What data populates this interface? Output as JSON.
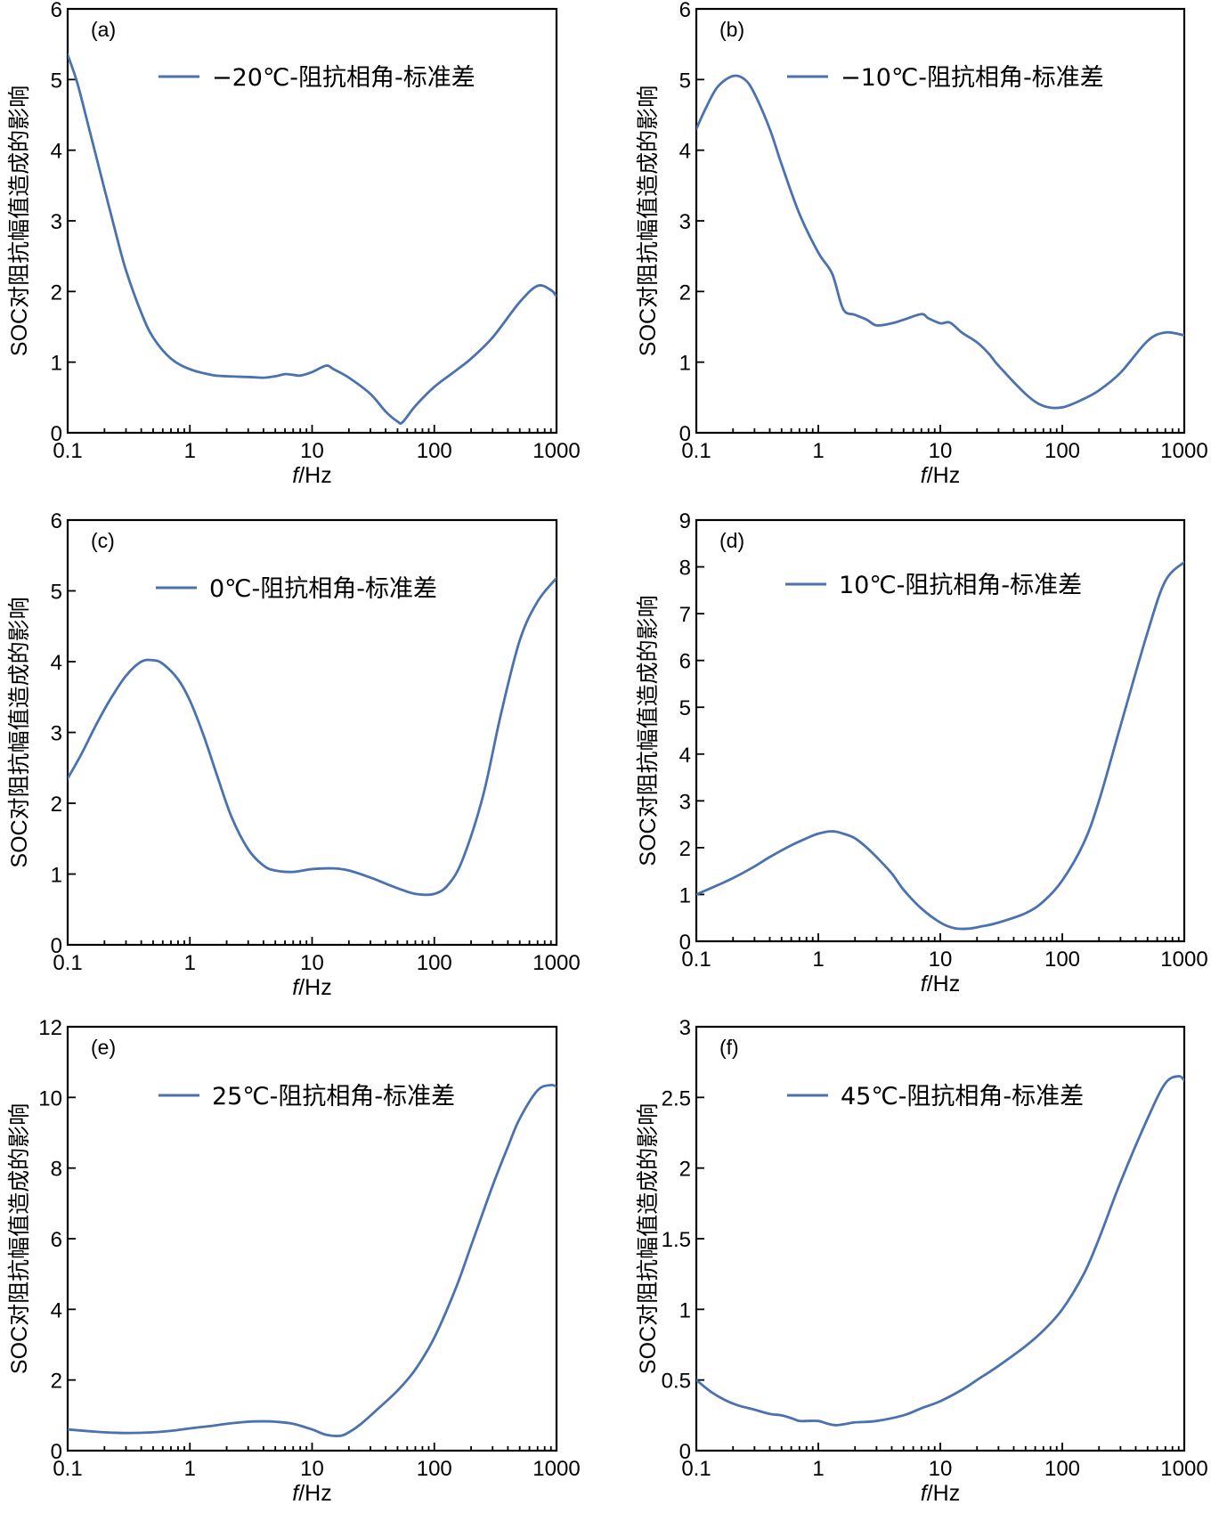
{
  "figure": {
    "line_color": "#4a72ae",
    "ylabel": "SOC对阻抗幅值造成的影响",
    "xlabel_italic": "f",
    "xlabel_unit": "/Hz"
  },
  "chart_data": [
    {
      "id": "a",
      "type": "line",
      "panel_label": "(a)",
      "title": "",
      "xscale": "log",
      "xlim": [
        0.1,
        1000
      ],
      "ylim": [
        0,
        6
      ],
      "xticks": [
        0.1,
        1,
        10,
        100,
        1000
      ],
      "xtick_labels": [
        "0.1",
        "1",
        "10",
        "100",
        "1000"
      ],
      "yticks": [
        0,
        1,
        2,
        3,
        4,
        5,
        6
      ],
      "ytick_labels": [
        "0",
        "1",
        "2",
        "3",
        "4",
        "5",
        "6"
      ],
      "xlabel": "f/Hz",
      "ylabel": "SOC对阻抗幅值造成的影响",
      "legend_position": "top-center",
      "series": [
        {
          "name": "−20℃-阻抗相角-标准差",
          "x": [
            0.1,
            0.12,
            0.15,
            0.2,
            0.25,
            0.3,
            0.4,
            0.5,
            0.7,
            1.0,
            1.5,
            2,
            3,
            4,
            5,
            6,
            7,
            8,
            10,
            13,
            15,
            20,
            30,
            40,
            50,
            55,
            70,
            100,
            150,
            200,
            300,
            500,
            700,
            900,
            1000
          ],
          "y": [
            5.35,
            4.95,
            4.3,
            3.45,
            2.8,
            2.3,
            1.7,
            1.35,
            1.05,
            0.9,
            0.82,
            0.8,
            0.79,
            0.78,
            0.8,
            0.83,
            0.82,
            0.81,
            0.86,
            0.95,
            0.9,
            0.78,
            0.55,
            0.3,
            0.16,
            0.15,
            0.38,
            0.65,
            0.88,
            1.05,
            1.35,
            1.85,
            2.08,
            2.02,
            1.93
          ]
        }
      ]
    },
    {
      "id": "b",
      "type": "line",
      "panel_label": "(b)",
      "title": "",
      "xscale": "log",
      "xlim": [
        0.1,
        1000
      ],
      "ylim": [
        0,
        6
      ],
      "xticks": [
        0.1,
        1,
        10,
        100,
        1000
      ],
      "xtick_labels": [
        "0.1",
        "1",
        "10",
        "100",
        "1000"
      ],
      "yticks": [
        0,
        1,
        2,
        3,
        4,
        5,
        6
      ],
      "ytick_labels": [
        "0",
        "1",
        "2",
        "3",
        "4",
        "5",
        "6"
      ],
      "xlabel": "f/Hz",
      "ylabel": "SOC对阻抗幅值造成的影响",
      "legend_position": "top-center",
      "series": [
        {
          "name": "−10℃-阻抗相角-标准差",
          "x": [
            0.1,
            0.12,
            0.15,
            0.2,
            0.25,
            0.3,
            0.4,
            0.5,
            0.7,
            1.0,
            1.3,
            1.6,
            2.0,
            2.5,
            3,
            4,
            5,
            7,
            8,
            10,
            12,
            15,
            20,
            25,
            30,
            50,
            70,
            100,
            150,
            200,
            300,
            500,
            700,
            1000
          ],
          "y": [
            4.3,
            4.6,
            4.9,
            5.05,
            5.0,
            4.8,
            4.3,
            3.8,
            3.1,
            2.55,
            2.25,
            1.75,
            1.67,
            1.6,
            1.52,
            1.55,
            1.6,
            1.68,
            1.62,
            1.55,
            1.56,
            1.42,
            1.28,
            1.12,
            0.95,
            0.55,
            0.38,
            0.36,
            0.48,
            0.6,
            0.85,
            1.3,
            1.42,
            1.38
          ]
        }
      ]
    },
    {
      "id": "c",
      "type": "line",
      "panel_label": "(c)",
      "title": "",
      "xscale": "log",
      "xlim": [
        0.1,
        1000
      ],
      "ylim": [
        0,
        6
      ],
      "xticks": [
        0.1,
        1,
        10,
        100,
        1000
      ],
      "xtick_labels": [
        "0.1",
        "1",
        "10",
        "100",
        "1000"
      ],
      "yticks": [
        0,
        1,
        2,
        3,
        4,
        5,
        6
      ],
      "ytick_labels": [
        "0",
        "1",
        "2",
        "3",
        "4",
        "5",
        "6"
      ],
      "xlabel": "f/Hz",
      "ylabel": "SOC对阻抗幅值造成的影响",
      "legend_position": "top-center",
      "series": [
        {
          "name": "0℃-阻抗相角-标准差",
          "x": [
            0.1,
            0.13,
            0.17,
            0.22,
            0.3,
            0.4,
            0.5,
            0.6,
            0.8,
            1.0,
            1.3,
            1.7,
            2.2,
            3,
            4,
            5,
            7,
            10,
            15,
            20,
            30,
            50,
            70,
            100,
            130,
            170,
            250,
            350,
            500,
            700,
            1000
          ],
          "y": [
            2.35,
            2.7,
            3.1,
            3.45,
            3.8,
            4.0,
            4.02,
            3.97,
            3.75,
            3.45,
            2.95,
            2.35,
            1.8,
            1.35,
            1.12,
            1.05,
            1.03,
            1.07,
            1.08,
            1.05,
            0.95,
            0.8,
            0.72,
            0.72,
            0.85,
            1.2,
            2.1,
            3.25,
            4.3,
            4.85,
            5.18
          ]
        }
      ]
    },
    {
      "id": "d",
      "type": "line",
      "panel_label": "(d)",
      "title": "",
      "xscale": "log",
      "xlim": [
        0.1,
        1000
      ],
      "ylim": [
        0,
        9
      ],
      "xticks": [
        0.1,
        1,
        10,
        100,
        1000
      ],
      "xtick_labels": [
        "0.1",
        "1",
        "10",
        "100",
        "1000"
      ],
      "yticks": [
        0,
        1,
        2,
        3,
        4,
        5,
        6,
        7,
        8,
        9
      ],
      "ytick_labels": [
        "0",
        "1",
        "2",
        "3",
        "4",
        "5",
        "6",
        "7",
        "8",
        "9"
      ],
      "xlabel": "f/Hz",
      "ylabel": "SOC对阻抗幅值造成的影响",
      "legend_position": "top-center",
      "series": [
        {
          "name": "10℃-阻抗相角-标准差",
          "x": [
            0.1,
            0.15,
            0.2,
            0.3,
            0.4,
            0.6,
            0.8,
            1.0,
            1.3,
            1.6,
            2.0,
            2.5,
            3,
            4,
            5,
            7,
            10,
            13,
            17,
            22,
            30,
            50,
            70,
            100,
            150,
            200,
            300,
            500,
            700,
            1000
          ],
          "y": [
            1.0,
            1.2,
            1.35,
            1.6,
            1.8,
            2.05,
            2.2,
            2.3,
            2.35,
            2.3,
            2.2,
            2.0,
            1.8,
            1.45,
            1.1,
            0.7,
            0.4,
            0.28,
            0.27,
            0.32,
            0.4,
            0.6,
            0.85,
            1.3,
            2.1,
            3.0,
            4.6,
            6.6,
            7.7,
            8.1
          ]
        }
      ]
    },
    {
      "id": "e",
      "type": "line",
      "panel_label": "(e)",
      "title": "",
      "xscale": "log",
      "xlim": [
        0.1,
        1000
      ],
      "ylim": [
        0,
        12
      ],
      "xticks": [
        0.1,
        1,
        10,
        100,
        1000
      ],
      "xtick_labels": [
        "0.1",
        "1",
        "10",
        "100",
        "1000"
      ],
      "yticks": [
        0,
        2,
        4,
        6,
        8,
        10,
        12
      ],
      "ytick_labels": [
        "0",
        "2",
        "4",
        "6",
        "8",
        "10",
        "12"
      ],
      "xlabel": "f/Hz",
      "ylabel": "SOC对阻抗幅值造成的影响",
      "legend_position": "top-center",
      "series": [
        {
          "name": "25℃-阻抗相角-标准差",
          "x": [
            0.1,
            0.15,
            0.2,
            0.3,
            0.5,
            0.7,
            1.0,
            1.5,
            2,
            3,
            4,
            5,
            7,
            10,
            13,
            17,
            20,
            25,
            35,
            50,
            70,
            100,
            150,
            200,
            300,
            400,
            500,
            700,
            900,
            1000
          ],
          "y": [
            0.6,
            0.55,
            0.52,
            0.5,
            0.52,
            0.56,
            0.63,
            0.7,
            0.76,
            0.82,
            0.83,
            0.82,
            0.76,
            0.6,
            0.45,
            0.42,
            0.52,
            0.75,
            1.2,
            1.7,
            2.3,
            3.2,
            4.6,
            5.8,
            7.5,
            8.6,
            9.4,
            10.2,
            10.35,
            10.3
          ]
        }
      ]
    },
    {
      "id": "f",
      "type": "line",
      "panel_label": "(f)",
      "title": "",
      "xscale": "log",
      "xlim": [
        0.1,
        1000
      ],
      "ylim": [
        0,
        3
      ],
      "xticks": [
        0.1,
        1,
        10,
        100,
        1000
      ],
      "xtick_labels": [
        "0.1",
        "1",
        "10",
        "100",
        "1000"
      ],
      "yticks": [
        0,
        0.5,
        1,
        1.5,
        2,
        2.5,
        3
      ],
      "ytick_labels": [
        "0",
        "0.5",
        "1",
        "1.5",
        "2",
        "2.5",
        "3"
      ],
      "xlabel": "f/Hz",
      "ylabel": "SOC对阻抗幅值造成的影响",
      "legend_position": "top-center",
      "series": [
        {
          "name": "45℃-阻抗相角-标准差",
          "x": [
            0.1,
            0.13,
            0.17,
            0.22,
            0.3,
            0.4,
            0.5,
            0.6,
            0.7,
            0.8,
            1.0,
            1.2,
            1.4,
            1.7,
            2.0,
            3,
            5,
            7,
            10,
            15,
            20,
            30,
            50,
            70,
            100,
            150,
            200,
            300,
            500,
            700,
            900,
            1000
          ],
          "y": [
            0.5,
            0.42,
            0.36,
            0.32,
            0.29,
            0.26,
            0.25,
            0.23,
            0.21,
            0.21,
            0.21,
            0.19,
            0.18,
            0.19,
            0.2,
            0.21,
            0.25,
            0.3,
            0.35,
            0.43,
            0.5,
            0.6,
            0.74,
            0.85,
            1.0,
            1.25,
            1.5,
            1.9,
            2.35,
            2.6,
            2.65,
            2.62
          ]
        }
      ]
    }
  ]
}
